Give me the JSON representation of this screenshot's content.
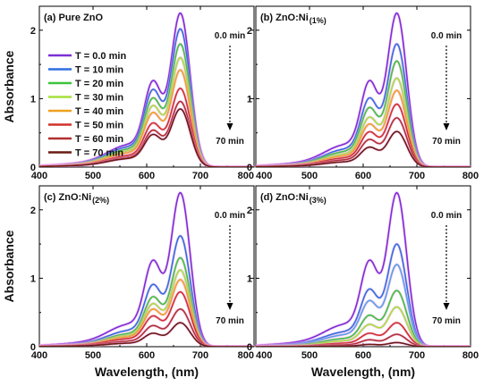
{
  "chart_data": [
    {
      "type": "line",
      "panel": "a",
      "title_prefix": "(a) Pure ZnO",
      "title_sub": "",
      "xlabel": "",
      "ylabel": "Absorbance",
      "xlim": [
        400,
        800
      ],
      "ylim": [
        0,
        2.35
      ],
      "xticks": [
        "400",
        "500",
        "600",
        "700",
        "800"
      ],
      "yticks": [
        "0",
        "1",
        "2"
      ],
      "arrow_start_label": "0.0 min",
      "arrow_end_label": "70 min",
      "legend": {
        "placement": "top-left",
        "entries": [
          "T = 0.0 min",
          "T = 10 min",
          "T = 20 min",
          "T = 30 min",
          "T = 40 min",
          "T = 50 min",
          "T = 60 min",
          "T = 70 min"
        ]
      },
      "series": [
        {
          "peak": 2.25,
          "color": "#7b2fd6"
        },
        {
          "peak": 2.02,
          "color": "#2f6fe0"
        },
        {
          "peak": 1.8,
          "color": "#3cc43c"
        },
        {
          "peak": 1.6,
          "color": "#a6e03a"
        },
        {
          "peak": 1.42,
          "color": "#f0a020"
        },
        {
          "peak": 1.15,
          "color": "#d0302a"
        },
        {
          "peak": 0.96,
          "color": "#b03030"
        },
        {
          "peak": 0.85,
          "color": "#6a1a12"
        }
      ]
    },
    {
      "type": "line",
      "panel": "b",
      "title_prefix": "(b) ZnO:Ni",
      "title_sub": "(1%)",
      "xlabel": "",
      "ylabel": "",
      "xlim": [
        400,
        800
      ],
      "ylim": [
        0,
        2.35
      ],
      "xticks": [
        "400",
        "500",
        "600",
        "700",
        "800"
      ],
      "yticks": [
        "0",
        "1",
        "2"
      ],
      "arrow_start_label": "0.0 min",
      "arrow_end_label": "70 min",
      "series": [
        {
          "peak": 2.25,
          "color": "#7b2fd6"
        },
        {
          "peak": 1.8,
          "color": "#2f6fe0"
        },
        {
          "peak": 1.55,
          "color": "#3cc43c"
        },
        {
          "peak": 1.3,
          "color": "#a6e03a"
        },
        {
          "peak": 1.12,
          "color": "#f0a020"
        },
        {
          "peak": 0.92,
          "color": "#d0302a"
        },
        {
          "peak": 0.72,
          "color": "#b03030"
        },
        {
          "peak": 0.52,
          "color": "#6a1a12"
        }
      ]
    },
    {
      "type": "line",
      "panel": "c",
      "title_prefix": "(c) ZnO:Ni",
      "title_sub": "(2%)",
      "xlabel": "Wavelength, (nm)",
      "ylabel": "Absorbance",
      "xlim": [
        400,
        800
      ],
      "ylim": [
        0,
        2.35
      ],
      "xticks": [
        "400",
        "500",
        "600",
        "700",
        "800"
      ],
      "yticks": [
        "0",
        "1",
        "2"
      ],
      "arrow_start_label": "0.0 min",
      "arrow_end_label": "70 min",
      "series": [
        {
          "peak": 2.25,
          "color": "#7b2fd6"
        },
        {
          "peak": 1.62,
          "color": "#2f6fe0"
        },
        {
          "peak": 1.3,
          "color": "#3cc43c"
        },
        {
          "peak": 1.12,
          "color": "#a6e03a"
        },
        {
          "peak": 0.98,
          "color": "#f0a020"
        },
        {
          "peak": 0.8,
          "color": "#d0302a"
        },
        {
          "peak": 0.55,
          "color": "#b03030"
        },
        {
          "peak": 0.35,
          "color": "#6a1a12"
        }
      ]
    },
    {
      "type": "line",
      "panel": "d",
      "title_prefix": "(d) ZnO:Ni",
      "title_sub": "(3%)",
      "xlabel": "Wavelength, (nm)",
      "ylabel": "",
      "xlim": [
        400,
        800
      ],
      "ylim": [
        0,
        2.35
      ],
      "xticks": [
        "400",
        "500",
        "600",
        "700",
        "800"
      ],
      "yticks": [
        "0",
        "1",
        "2"
      ],
      "arrow_start_label": "0.0 min",
      "arrow_end_label": "70 min",
      "series": [
        {
          "peak": 2.25,
          "color": "#7b2fd6"
        },
        {
          "peak": 1.5,
          "color": "#2f6fe0"
        },
        {
          "peak": 1.2,
          "color": "#5aa0e8"
        },
        {
          "peak": 0.82,
          "color": "#3cc43c"
        },
        {
          "peak": 0.58,
          "color": "#a6e03a"
        },
        {
          "peak": 0.35,
          "color": "#d0302a"
        },
        {
          "peak": 0.18,
          "color": "#b03030"
        },
        {
          "peak": 0.06,
          "color": "#6a1a12"
        }
      ]
    }
  ]
}
